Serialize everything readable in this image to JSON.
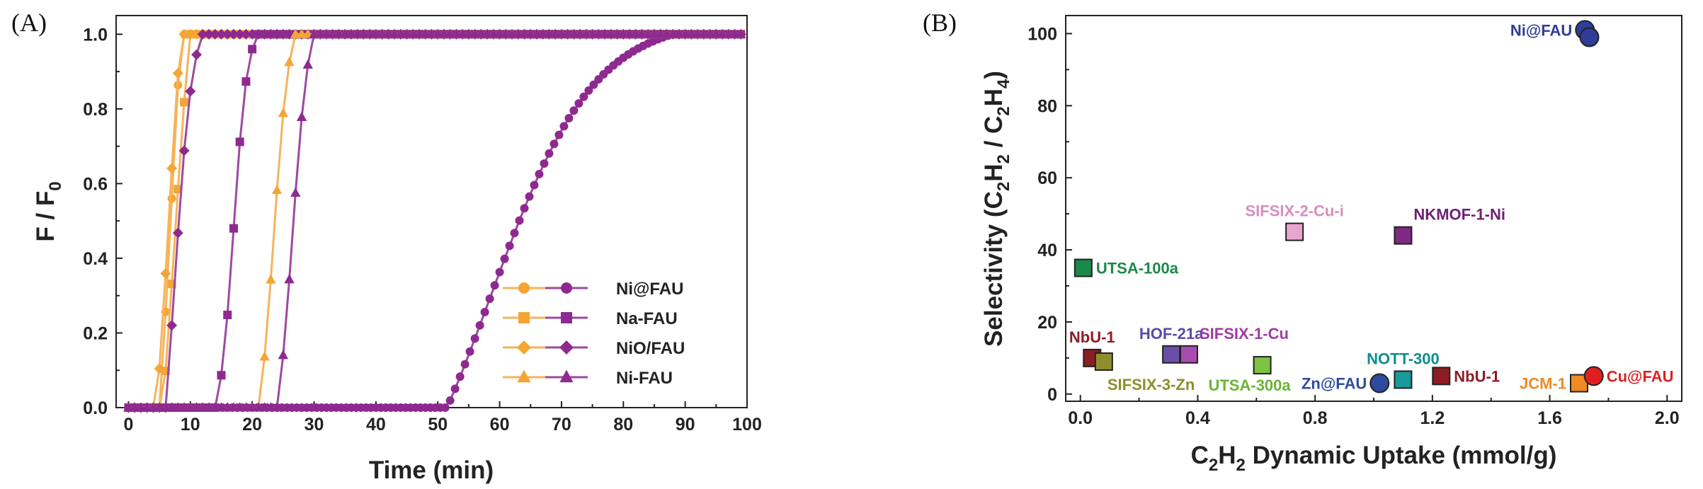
{
  "panel_a_label": "(A)",
  "panel_b_label": "(B)",
  "chart_data": [
    {
      "type": "line",
      "panel": "A",
      "title": "",
      "xlabel": "Time (min)",
      "ylabel": "F / F0",
      "ylabel_main": "F / F",
      "ylabel_sub": "0",
      "xlim": [
        -2,
        100
      ],
      "ylim": [
        0,
        1.05
      ],
      "xticks": [
        0,
        10,
        20,
        30,
        40,
        50,
        60,
        70,
        80,
        90,
        100
      ],
      "yticks": [
        0.0,
        0.2,
        0.4,
        0.6,
        0.8,
        1.0
      ],
      "ytick_labels": [
        "0.0",
        "0.2",
        "0.4",
        "0.6",
        "0.8",
        "1.0"
      ],
      "legend_placement": "bottom-right",
      "legend": [
        {
          "label": "Ni@FAU",
          "marker": "circle"
        },
        {
          "label": "Na-FAU",
          "marker": "square"
        },
        {
          "label": "NiO/FAU",
          "marker": "diamond"
        },
        {
          "label": "Ni-FAU",
          "marker": "triangle"
        }
      ],
      "colors": {
        "orange": "#F4A534",
        "orange_line": "#F7B35A",
        "purple": "#8E2A8F",
        "purple_line": "#9C4AA0"
      },
      "series": [
        {
          "name": "Ni@FAU",
          "color": "orange",
          "marker": "circle",
          "x_start": 0,
          "x_end": 99,
          "breakthrough": 7.0,
          "sharpness": 0.6,
          "rise_start": 5.0,
          "rise_end": 8.5,
          "step": 1.0
        },
        {
          "name": "Ni@FAU",
          "color": "purple",
          "marker": "circle",
          "x_start": 0,
          "x_end": 88,
          "breakthrough": 58.5,
          "sharpness": 0.12,
          "rise_start": 51.5,
          "rise_end": 88,
          "step": 0.8
        },
        {
          "name": "Na-FAU",
          "color": "orange",
          "marker": "square",
          "x_start": 0,
          "x_end": 99,
          "breakthrough": 7.5,
          "sharpness": 0.6,
          "rise_start": 5.5,
          "rise_end": 10,
          "step": 1.0
        },
        {
          "name": "Na-FAU",
          "color": "purple",
          "marker": "square",
          "x_start": 0,
          "x_end": 99,
          "breakthrough": 17.0,
          "sharpness": 0.9,
          "rise_start": 14,
          "rise_end": 21,
          "step": 1.0
        },
        {
          "name": "NiO/FAU",
          "color": "orange",
          "marker": "diamond",
          "x_start": 0,
          "x_end": 99,
          "breakthrough": 6.5,
          "sharpness": 0.65,
          "rise_start": 4.5,
          "rise_end": 8.5,
          "step": 1.0
        },
        {
          "name": "NiO/FAU",
          "color": "purple",
          "marker": "diamond",
          "x_start": 0,
          "x_end": 99,
          "breakthrough": 7.5,
          "sharpness": 0.7,
          "rise_start": 6,
          "rise_end": 12,
          "step": 1.0
        },
        {
          "name": "Ni-FAU",
          "color": "orange",
          "marker": "triangle",
          "x_start": 0,
          "x_end": 99,
          "breakthrough": 23.5,
          "sharpness": 0.8,
          "rise_start": 21,
          "rise_end": 27,
          "step": 1.0
        },
        {
          "name": "Ni-FAU",
          "color": "purple",
          "marker": "triangle",
          "x_start": 0,
          "x_end": 99,
          "breakthrough": 26.5,
          "sharpness": 0.75,
          "rise_start": 24,
          "rise_end": 30,
          "step": 1.0
        }
      ]
    },
    {
      "type": "scatter",
      "panel": "B",
      "title": "",
      "xlabel": "C2H2 Dynamic Uptake (mmol/g)",
      "ylabel": "Selectivity (C2H2 / C2H4)",
      "xlim": [
        -0.05,
        2.05
      ],
      "ylim": [
        -2,
        105
      ],
      "xticks": [
        0.0,
        0.4,
        0.8,
        1.2,
        1.6,
        2.0
      ],
      "xtick_labels": [
        "0.0",
        "0.4",
        "0.8",
        "1.2",
        "1.6",
        "2.0"
      ],
      "yticks": [
        0,
        20,
        40,
        60,
        80,
        100
      ],
      "points": [
        {
          "label": "Ni@FAU",
          "x": 1.72,
          "y": 101,
          "marker": "circle",
          "color": "#2E3D98",
          "label_color": "#2E3D98",
          "label_side": "left"
        },
        {
          "label": "",
          "x": 1.735,
          "y": 99,
          "marker": "circle",
          "color": "#2E3D98",
          "label_color": "#2E3D98",
          "label_side": "none"
        },
        {
          "label": "SIFSIX-2-Cu-i",
          "x": 0.73,
          "y": 45,
          "marker": "square",
          "color": "#E8A6CF",
          "label_color": "#D78EC0",
          "label_side": "above"
        },
        {
          "label": "NKMOF-1-Ni",
          "x": 1.1,
          "y": 44,
          "marker": "square",
          "color": "#7E2A83",
          "label_color": "#6E1F74",
          "label_side": "above-right"
        },
        {
          "label": "UTSA-100a",
          "x": 0.01,
          "y": 35,
          "marker": "square",
          "color": "#1A8A4A",
          "label_color": "#1A8A4A",
          "label_side": "right"
        },
        {
          "label": "NbU-1",
          "x": 0.04,
          "y": 10,
          "marker": "square",
          "color": "#8E1C24",
          "label_color": "#8E1C24",
          "label_side": "above"
        },
        {
          "label": "SIFSIX-3-Zn",
          "x": 0.08,
          "y": 9,
          "marker": "square",
          "color": "#8E8E2C",
          "label_color": "#8E8E2C",
          "label_side": "below-right"
        },
        {
          "label": "HOF-21a",
          "x": 0.31,
          "y": 11,
          "marker": "square",
          "color": "#6A4FA8",
          "label_color": "#5A4AA8",
          "label_side": "above"
        },
        {
          "label": "SIFSIX-1-Cu",
          "x": 0.37,
          "y": 11,
          "marker": "square",
          "color": "#A94BAE",
          "label_color": "#A13AA6",
          "label_side": "above-right"
        },
        {
          "label": "UTSA-300a",
          "x": 0.62,
          "y": 8,
          "marker": "square",
          "color": "#7DC242",
          "label_color": "#68B534",
          "label_side": "below"
        },
        {
          "label": "Zn@FAU",
          "x": 1.02,
          "y": 3,
          "marker": "circle",
          "color": "#2E4A9E",
          "label_color": "#2E4A9E",
          "label_side": "left"
        },
        {
          "label": "NOTT-300",
          "x": 1.1,
          "y": 4,
          "marker": "square",
          "color": "#1A9A9A",
          "label_color": "#0F8C8E",
          "label_side": "above"
        },
        {
          "label": "NbU-1",
          "x": 1.23,
          "y": 5,
          "marker": "square",
          "color": "#8E1C24",
          "label_color": "#8E1C24",
          "label_side": "right"
        },
        {
          "label": "JCM-1",
          "x": 1.7,
          "y": 3,
          "marker": "square",
          "color": "#F08A24",
          "label_color": "#F08A24",
          "label_side": "left"
        },
        {
          "label": "Cu@FAU",
          "x": 1.75,
          "y": 5,
          "marker": "circle",
          "color": "#E02020",
          "label_color": "#E02020",
          "label_side": "right"
        }
      ]
    }
  ]
}
